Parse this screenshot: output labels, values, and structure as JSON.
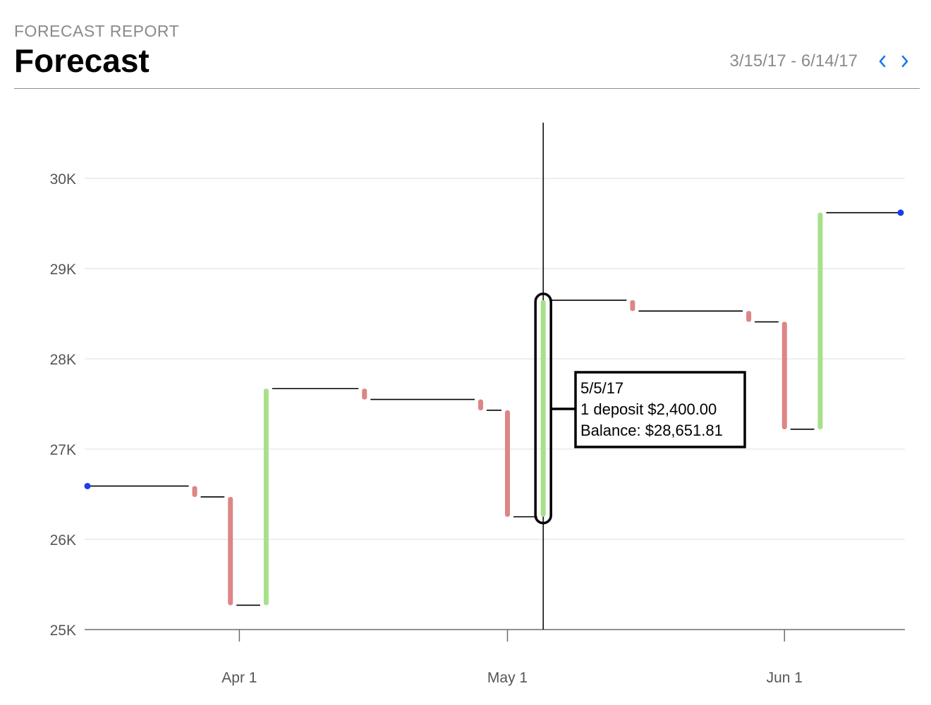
{
  "header": {
    "eyebrow": "FORECAST REPORT",
    "title": "Forecast",
    "date_range": "3/15/17 - 6/14/17",
    "prev_icon": "chevron-left-icon",
    "next_icon": "chevron-right-icon"
  },
  "colors": {
    "deposit": "#a8e08a",
    "withdrawal": "#de8585",
    "balance_line": "#000000",
    "endpoint": "#1a3cf0",
    "nav_accent": "#1a7cf0",
    "gridline": "#e9e9e9"
  },
  "chart_data": {
    "type": "waterfall",
    "x_domain": [
      "3/15/17",
      "6/14/17"
    ],
    "ylim": [
      25000,
      30000
    ],
    "y_ticks": [
      25000,
      26000,
      27000,
      28000,
      29000,
      30000
    ],
    "y_tick_labels": [
      "25K",
      "26K",
      "27K",
      "28K",
      "29K",
      "30K"
    ],
    "x_ticks": [
      {
        "date": "4/1/17",
        "label": "Apr 1"
      },
      {
        "date": "5/1/17",
        "label": "May 1"
      },
      {
        "date": "6/1/17",
        "label": "Jun 1"
      }
    ],
    "start": {
      "date": "3/15/17",
      "balance": 26590
    },
    "end": {
      "date": "6/14/17",
      "balance": 29620
    },
    "transactions": [
      {
        "date": "3/27/17",
        "type": "withdrawal",
        "from": 26590,
        "to": 26470
      },
      {
        "date": "3/31/17",
        "type": "withdrawal",
        "from": 26470,
        "to": 25270
      },
      {
        "date": "4/4/17",
        "type": "deposit",
        "from": 25270,
        "to": 27670
      },
      {
        "date": "4/15/17",
        "type": "withdrawal",
        "from": 27670,
        "to": 27550
      },
      {
        "date": "4/28/17",
        "type": "withdrawal",
        "from": 27550,
        "to": 27430
      },
      {
        "date": "5/1/17",
        "type": "withdrawal",
        "from": 27430,
        "to": 26250
      },
      {
        "date": "5/5/17",
        "type": "deposit",
        "from": 26250,
        "to": 28650
      },
      {
        "date": "5/15/17",
        "type": "withdrawal",
        "from": 28650,
        "to": 28530
      },
      {
        "date": "5/28/17",
        "type": "withdrawal",
        "from": 28530,
        "to": 28410
      },
      {
        "date": "6/1/17",
        "type": "withdrawal",
        "from": 28410,
        "to": 27220
      },
      {
        "date": "6/5/17",
        "type": "deposit",
        "from": 27220,
        "to": 29620
      }
    ],
    "selected_date": "5/5/17",
    "tooltip": {
      "date": "5/5/17",
      "summary": "1 deposit $2,400.00",
      "balance": "Balance: $28,651.81"
    }
  }
}
